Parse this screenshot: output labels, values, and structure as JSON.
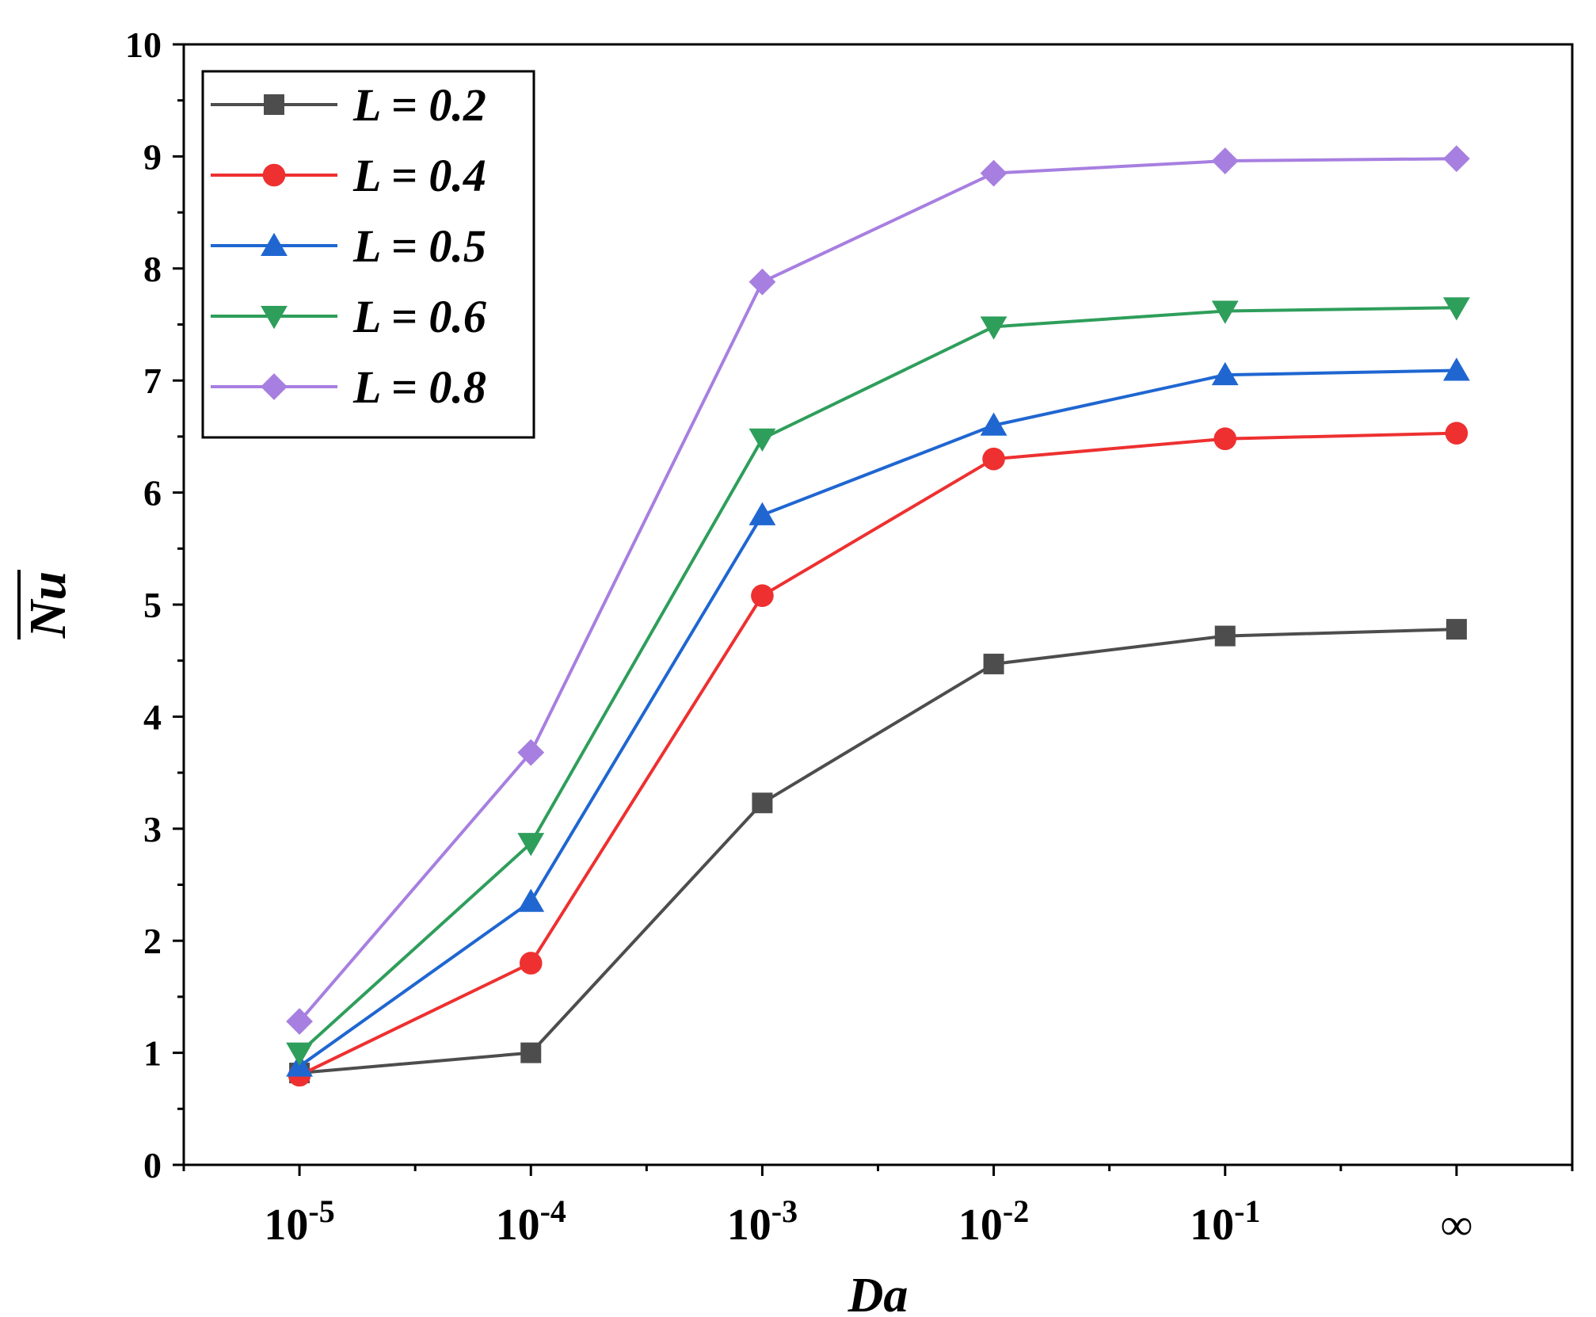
{
  "chart_data": {
    "type": "line",
    "title": "",
    "xlabel": "Da",
    "ylabel": "Nu",
    "ylabel_overline": true,
    "ylim": [
      0,
      10
    ],
    "yticks": [
      "0",
      "1",
      "2",
      "3",
      "4",
      "5",
      "6",
      "7",
      "8",
      "9",
      "10"
    ],
    "categories": [
      {
        "base": "10",
        "exp": "-5"
      },
      {
        "base": "10",
        "exp": "-4"
      },
      {
        "base": "10",
        "exp": "-3"
      },
      {
        "base": "10",
        "exp": "-2"
      },
      {
        "base": "10",
        "exp": "-1"
      },
      {
        "base": "∞",
        "exp": ""
      }
    ],
    "legend_position": "top-left",
    "grid": false,
    "series": [
      {
        "name": "L = 0.2",
        "color": "#4d4d4d",
        "marker": "square",
        "values": [
          0.82,
          1.0,
          3.23,
          4.47,
          4.72,
          4.78
        ]
      },
      {
        "name": "L = 0.4",
        "color": "#ee3030",
        "marker": "circle",
        "values": [
          0.8,
          1.8,
          5.08,
          6.3,
          6.48,
          6.53
        ]
      },
      {
        "name": "L = 0.5",
        "color": "#1f66d1",
        "marker": "triangle-up",
        "values": [
          0.88,
          2.35,
          5.8,
          6.6,
          7.05,
          7.09
        ]
      },
      {
        "name": "L = 0.6",
        "color": "#2e9e5b",
        "marker": "triangle-down",
        "values": [
          1.0,
          2.87,
          6.48,
          7.48,
          7.62,
          7.65
        ]
      },
      {
        "name": "L = 0.8",
        "color": "#a77fe0",
        "marker": "diamond",
        "values": [
          1.28,
          3.68,
          7.88,
          8.85,
          8.96,
          8.98
        ]
      }
    ]
  }
}
